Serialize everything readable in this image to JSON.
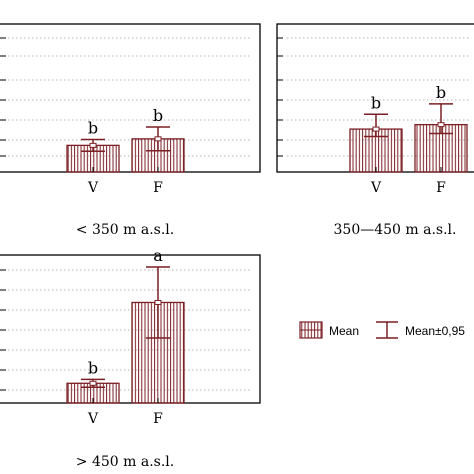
{
  "colors": {
    "bar_fill": "#ffffff",
    "bar_stroke": "#7b1f24",
    "hatch": "#7b1f24",
    "axis": "#000000",
    "grid": "#9a9a9a",
    "text": "#000000"
  },
  "legend": {
    "mean_label": "Mean",
    "ci_label": "Mean±0,95"
  },
  "chart_data": [
    {
      "type": "bar",
      "caption": "< 350 m a.s.l.",
      "categories": [
        "V",
        "F"
      ],
      "values": [
        0.9,
        1.12
      ],
      "errors_low": [
        0.7,
        0.72
      ],
      "errors_high": [
        1.1,
        1.52
      ],
      "letters": [
        "b",
        "b"
      ],
      "ylim": [
        0,
        5
      ],
      "grid": true
    },
    {
      "type": "bar",
      "caption": "350—450 m a.s.l.",
      "categories": [
        "V",
        "F"
      ],
      "values": [
        1.45,
        1.6
      ],
      "errors_low": [
        1.2,
        1.3
      ],
      "errors_high": [
        1.95,
        2.3
      ],
      "letters": [
        "b",
        "b"
      ],
      "ylim": [
        0,
        5
      ],
      "grid": true
    },
    {
      "type": "bar",
      "caption": "> 450 m a.s.l.",
      "categories": [
        "V",
        "F"
      ],
      "values": [
        1.0,
        5.1
      ],
      "errors_low": [
        0.8,
        3.3
      ],
      "errors_high": [
        1.2,
        6.9
      ],
      "letters": [
        "b",
        "a"
      ],
      "ylim": [
        0,
        7
      ],
      "grid": true
    }
  ]
}
